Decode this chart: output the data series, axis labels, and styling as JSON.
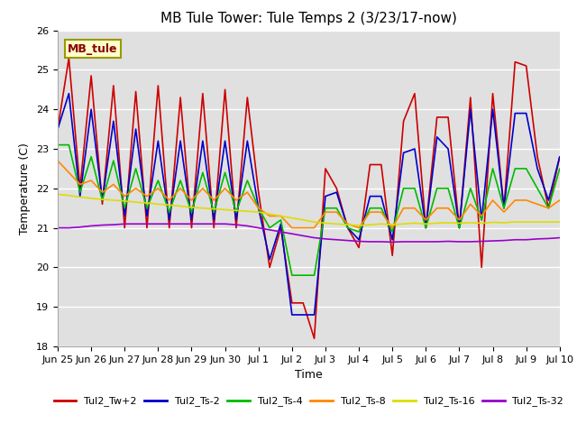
{
  "title": "MB Tule Tower: Tule Temps 2 (3/23/17-now)",
  "xlabel": "Time",
  "ylabel": "Temperature (C)",
  "bg_color": "#e0e0e0",
  "ylim": [
    18.0,
    26.0
  ],
  "yticks": [
    18.0,
    19.0,
    20.0,
    21.0,
    22.0,
    23.0,
    24.0,
    25.0,
    26.0
  ],
  "xtick_labels": [
    "Jun 25",
    "Jun 26",
    "Jun 27",
    "Jun 28",
    "Jun 29",
    "Jun 30",
    "Jul 1",
    "Jul 2",
    "Jul 3",
    "Jul 4",
    "Jul 5",
    "Jul 6",
    "Jul 7",
    "Jul 8",
    "Jul 9",
    "Jul 10"
  ],
  "series": {
    "Tul2_Tw+2": {
      "color": "#cc0000",
      "lw": 1.2,
      "values": [
        23.5,
        25.3,
        22.0,
        24.85,
        21.6,
        24.6,
        21.0,
        24.45,
        21.0,
        24.6,
        21.0,
        24.3,
        21.0,
        24.4,
        21.0,
        24.5,
        21.0,
        24.3,
        21.9,
        20.0,
        21.0,
        19.1,
        19.1,
        18.2,
        22.5,
        22.0,
        21.0,
        20.5,
        22.6,
        22.6,
        20.3,
        23.7,
        24.4,
        21.0,
        23.8,
        23.8,
        21.0,
        24.3,
        20.0,
        24.4,
        21.5,
        25.2,
        25.1,
        22.8,
        21.5,
        22.8
      ]
    },
    "Tul2_Ts-2": {
      "color": "#0000cc",
      "lw": 1.2,
      "values": [
        23.5,
        24.4,
        21.8,
        24.0,
        21.7,
        23.7,
        21.3,
        23.5,
        21.3,
        23.2,
        21.2,
        23.2,
        21.2,
        23.2,
        21.2,
        23.2,
        21.2,
        23.2,
        21.5,
        20.2,
        21.1,
        18.8,
        18.8,
        18.8,
        21.8,
        21.9,
        21.0,
        20.7,
        21.8,
        21.8,
        20.7,
        22.9,
        23.0,
        21.0,
        23.3,
        23.0,
        21.0,
        24.0,
        21.2,
        24.0,
        21.5,
        23.9,
        23.9,
        22.5,
        21.7,
        22.8
      ]
    },
    "Tul2_Ts-4": {
      "color": "#00bb00",
      "lw": 1.2,
      "values": [
        23.1,
        23.1,
        21.9,
        22.8,
        21.7,
        22.7,
        21.5,
        22.5,
        21.5,
        22.2,
        21.4,
        22.2,
        21.4,
        22.4,
        21.4,
        22.4,
        21.4,
        22.2,
        21.5,
        21.0,
        21.2,
        19.8,
        19.8,
        19.8,
        21.5,
        21.5,
        21.0,
        20.9,
        21.5,
        21.5,
        20.9,
        22.0,
        22.0,
        21.0,
        22.0,
        22.0,
        21.0,
        22.0,
        21.2,
        22.5,
        21.5,
        22.5,
        22.5,
        22.0,
        21.5,
        22.5
      ]
    },
    "Tul2_Ts-8": {
      "color": "#ff8800",
      "lw": 1.2,
      "values": [
        22.7,
        22.4,
        22.1,
        22.2,
        21.9,
        22.1,
        21.8,
        22.0,
        21.8,
        22.0,
        21.7,
        22.0,
        21.7,
        22.0,
        21.7,
        22.0,
        21.7,
        21.9,
        21.5,
        21.3,
        21.3,
        21.0,
        21.0,
        21.0,
        21.4,
        21.4,
        21.1,
        21.0,
        21.4,
        21.4,
        21.0,
        21.5,
        21.5,
        21.2,
        21.5,
        21.5,
        21.2,
        21.6,
        21.3,
        21.7,
        21.4,
        21.7,
        21.7,
        21.6,
        21.5,
        21.7
      ]
    },
    "Tul2_Ts-16": {
      "color": "#dddd00",
      "lw": 1.2,
      "values": [
        21.85,
        21.82,
        21.78,
        21.75,
        21.72,
        21.7,
        21.68,
        21.65,
        21.63,
        21.6,
        21.58,
        21.55,
        21.52,
        21.5,
        21.48,
        21.46,
        21.44,
        21.42,
        21.4,
        21.35,
        21.3,
        21.25,
        21.2,
        21.15,
        21.12,
        21.1,
        21.08,
        21.06,
        21.08,
        21.1,
        21.08,
        21.1,
        21.12,
        21.1,
        21.12,
        21.13,
        21.12,
        21.13,
        21.12,
        21.14,
        21.13,
        21.15,
        21.15,
        21.15,
        21.15,
        21.15
      ]
    },
    "Tul2_Ts-32": {
      "color": "#9900cc",
      "lw": 1.2,
      "values": [
        21.0,
        21.0,
        21.02,
        21.05,
        21.07,
        21.08,
        21.1,
        21.1,
        21.1,
        21.1,
        21.1,
        21.1,
        21.1,
        21.1,
        21.1,
        21.1,
        21.08,
        21.05,
        21.0,
        20.95,
        20.9,
        20.85,
        20.8,
        20.75,
        20.72,
        20.7,
        20.68,
        20.66,
        20.65,
        20.65,
        20.64,
        20.65,
        20.65,
        20.65,
        20.65,
        20.66,
        20.65,
        20.65,
        20.66,
        20.67,
        20.68,
        20.7,
        20.7,
        20.72,
        20.73,
        20.75
      ]
    }
  },
  "annotation_text": "MB_tule",
  "annotation_color": "#880000",
  "annotation_bg": "#ffffcc",
  "annotation_border": "#999900",
  "title_fontsize": 11,
  "axis_label_fontsize": 9,
  "tick_fontsize": 8,
  "legend_fontsize": 8
}
